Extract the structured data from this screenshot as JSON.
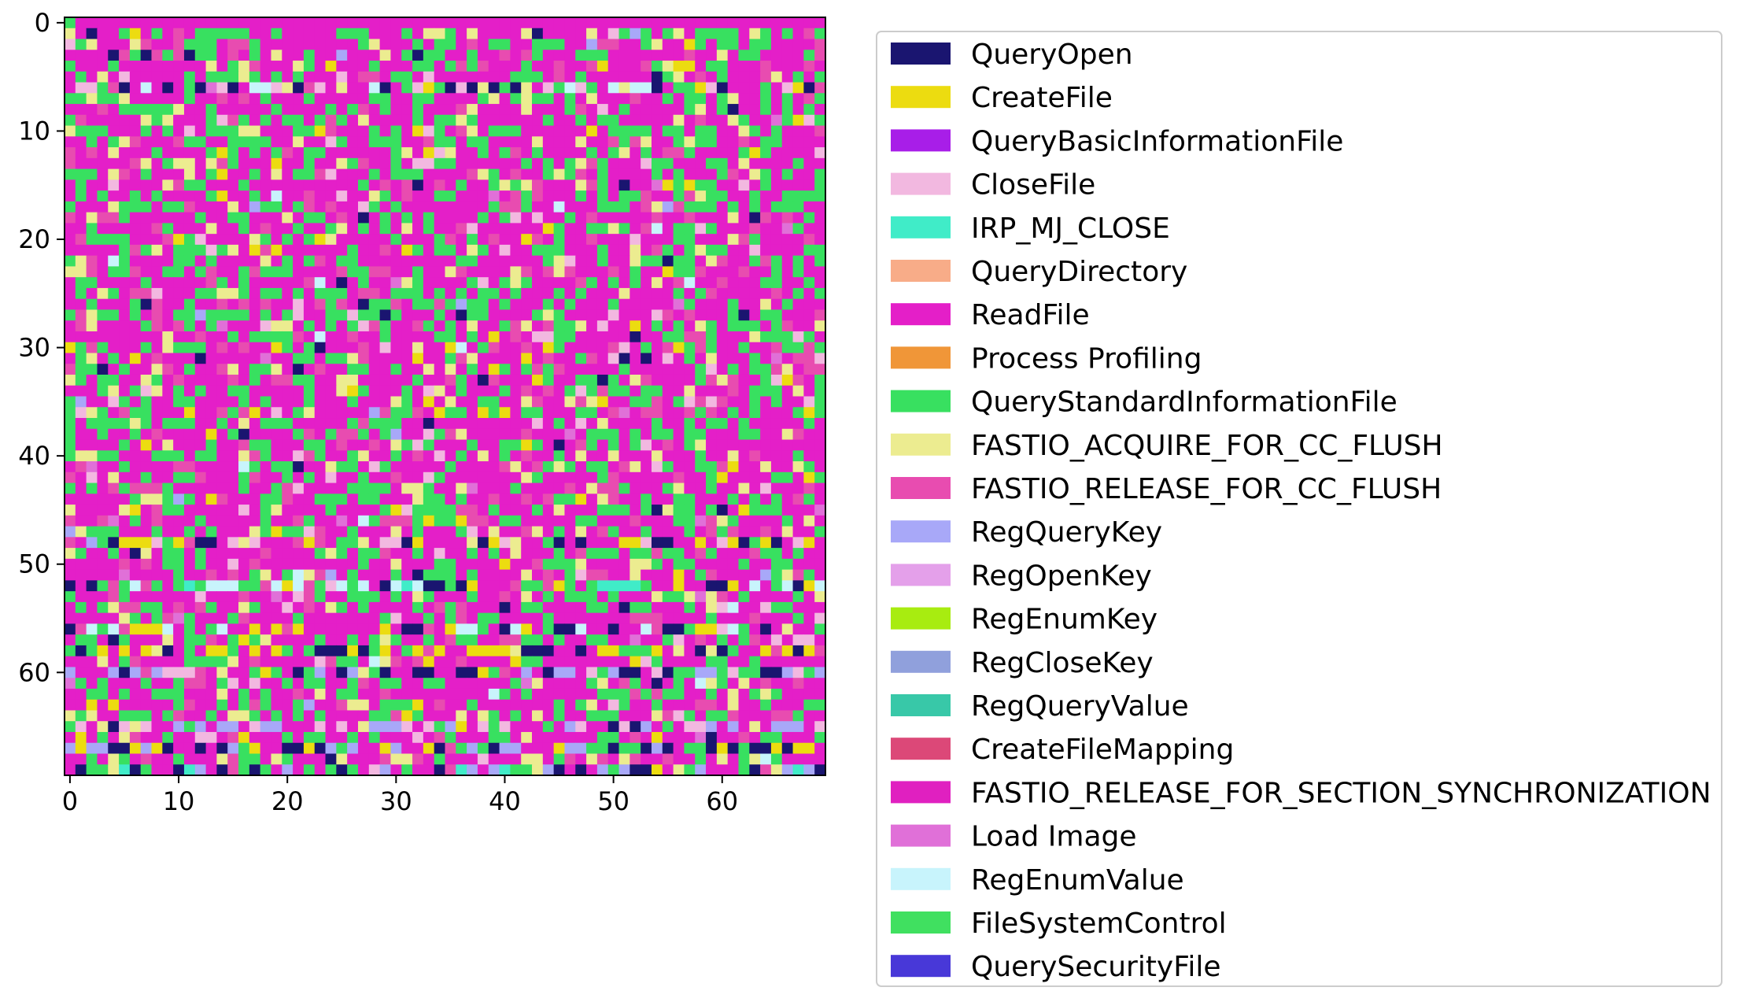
{
  "chart_data": {
    "type": "heatmap",
    "rows": 70,
    "cols": 70,
    "x_ticks": [
      "0",
      "10",
      "20",
      "30",
      "40",
      "50",
      "60"
    ],
    "y_ticks": [
      "0",
      "10",
      "20",
      "30",
      "40",
      "50",
      "60"
    ],
    "x_tick_values": [
      0,
      10,
      20,
      30,
      40,
      50,
      60
    ],
    "y_tick_values": [
      0,
      10,
      20,
      30,
      40,
      50,
      60
    ],
    "xlim": [
      -0.5,
      69.5
    ],
    "ylim": [
      69.5,
      -0.5
    ],
    "grid": false,
    "legend_position": "right",
    "categories": [
      {
        "name": "QueryOpen",
        "color": "#1a1570"
      },
      {
        "name": "CreateFile",
        "color": "#ecdc10"
      },
      {
        "name": "QueryBasicInformationFile",
        "color": "#a81ee8"
      },
      {
        "name": "CloseFile",
        "color": "#f2b8e0"
      },
      {
        "name": "IRP_MJ_CLOSE",
        "color": "#40ecc8"
      },
      {
        "name": "QueryDirectory",
        "color": "#f8ac88"
      },
      {
        "name": "ReadFile",
        "color": "#e41fc8"
      },
      {
        "name": "Process Profiling",
        "color": "#f09638"
      },
      {
        "name": "QueryStandardInformationFile",
        "color": "#38e060"
      },
      {
        "name": "FASTIO_ACQUIRE_FOR_CC_FLUSH",
        "color": "#ecec90"
      },
      {
        "name": "FASTIO_RELEASE_FOR_CC_FLUSH",
        "color": "#e84cb0"
      },
      {
        "name": "RegQueryKey",
        "color": "#a8a8f8"
      },
      {
        "name": "RegOpenKey",
        "color": "#e4a0ea"
      },
      {
        "name": "RegEnumKey",
        "color": "#a8ec10"
      },
      {
        "name": "RegCloseKey",
        "color": "#90a0dc"
      },
      {
        "name": "RegQueryValue",
        "color": "#38c8a8"
      },
      {
        "name": "CreateFileMapping",
        "color": "#dc4878"
      },
      {
        "name": "FASTIO_RELEASE_FOR_SECTION_SYNCHRONIZATION",
        "color": "#e020c0"
      },
      {
        "name": "Load Image",
        "color": "#e070d8"
      },
      {
        "name": "RegEnumValue",
        "color": "#c8f4fc"
      },
      {
        "name": "FileSystemControl",
        "color": "#40e060"
      },
      {
        "name": "QuerySecurityFile",
        "color": "#4838d8"
      }
    ],
    "value_distribution": {
      "ReadFile": 0.52,
      "QueryStandardInformationFile": 0.27,
      "FASTIO_RELEASE_FOR_CC_FLUSH": 0.09,
      "FASTIO_ACQUIRE_FOR_CC_FLUSH": 0.06,
      "CloseFile": 0.02,
      "CreateFile": 0.015,
      "QueryOpen": 0.01,
      "RegEnumValue": 0.005,
      "RegQueryKey": 0.005,
      "Load Image": 0.005
    },
    "notable_rows": {
      "0": [
        "ReadFile",
        "QueryStandardInformationFile"
      ],
      "6": [
        "CloseFile",
        "RegEnumValue",
        "QueryOpen"
      ],
      "48": [
        "CloseFile",
        "QueryOpen",
        "CreateFile"
      ],
      "52": [
        "QueryOpen",
        "CreateFile",
        "RegEnumValue",
        "IRP_MJ_CLOSE"
      ],
      "56": [
        "CreateFile",
        "QueryOpen",
        "RegEnumValue"
      ],
      "58": [
        "QueryOpen",
        "CreateFile"
      ],
      "60": [
        "CloseFile",
        "RegQueryKey",
        "QueryOpen"
      ],
      "65": [
        "RegQueryKey",
        "CloseFile"
      ],
      "67": [
        "QueryOpen",
        "CreateFile",
        "RegQueryKey"
      ],
      "69": [
        "RegQueryKey",
        "IRP_MJ_CLOSE",
        "QueryOpen"
      ]
    }
  }
}
